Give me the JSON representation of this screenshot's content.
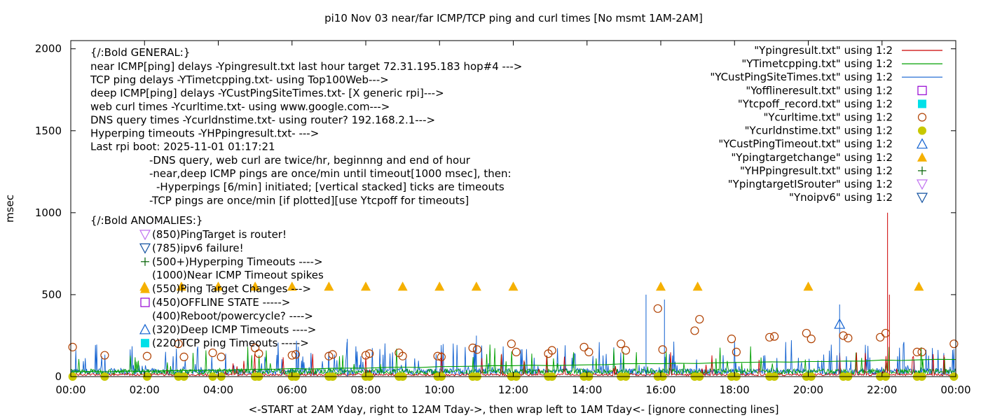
{
  "chart_data": {
    "type": "line",
    "title": "pi10 Nov 03  near/far ICMP/TCP ping and curl times [No msmt 1AM-2AM]",
    "xlabel": "<-START at 2AM Yday, right to 12AM Tday->, then wrap left to 1AM Tday<- [ignore connecting lines]",
    "ylabel": "msec",
    "xlim": [
      0,
      24
    ],
    "ylim": [
      0,
      2050
    ],
    "x_ticks": [
      {
        "v": 0,
        "label": "00:00"
      },
      {
        "v": 2,
        "label": "02:00"
      },
      {
        "v": 4,
        "label": "04:00"
      },
      {
        "v": 6,
        "label": "06:00"
      },
      {
        "v": 8,
        "label": "08:00"
      },
      {
        "v": 10,
        "label": "10:00"
      },
      {
        "v": 12,
        "label": "12:00"
      },
      {
        "v": 14,
        "label": "14:00"
      },
      {
        "v": 16,
        "label": "16:00"
      },
      {
        "v": 18,
        "label": "18:00"
      },
      {
        "v": 20,
        "label": "20:00"
      },
      {
        "v": 22,
        "label": "22:00"
      },
      {
        "v": 24,
        "label": "00:00"
      }
    ],
    "y_ticks": [
      {
        "v": 0,
        "label": "0"
      },
      {
        "v": 500,
        "label": "500"
      },
      {
        "v": 1000,
        "label": "1000"
      },
      {
        "v": 1500,
        "label": "1500"
      },
      {
        "v": 2000,
        "label": "2000"
      }
    ],
    "grid": false,
    "legend_position": "top-right",
    "legend": [
      {
        "name": "\"Ypingresult.txt\" using 1:2",
        "style": "line",
        "color": "#cc0000"
      },
      {
        "name": "\"YTimetcpping.txt\" using 1:2",
        "style": "line",
        "color": "#00a000"
      },
      {
        "name": "\"YCustPingSiteTimes.txt\" using 1:2",
        "style": "line",
        "color": "#1060d0"
      },
      {
        "name": "\"Yofflineresult.txt\" using 1:2",
        "style": "open-square",
        "color": "#9400d3"
      },
      {
        "name": "\"Ytcpoff_record.txt\" using 1:2",
        "style": "filled-square",
        "color": "#00e0e8"
      },
      {
        "name": "\"Ycurltime.txt\" using 1:2",
        "style": "open-circle",
        "color": "#b04000"
      },
      {
        "name": "\"Ycurldnstime.txt\" using 1:2",
        "style": "filled-circle",
        "color": "#c8c800"
      },
      {
        "name": "\"YCustPingTimeout.txt\" using 1:2",
        "style": "open-triangle",
        "color": "#1060d0"
      },
      {
        "name": "\"Ypingtargetchange\" using 1:2",
        "style": "filled-triangle",
        "color": "#f5b000"
      },
      {
        "name": "\"YHPpingresult.txt\" using 1:2",
        "style": "plus",
        "color": "#006000"
      },
      {
        "name": "\"YpingtargetISrouter\" using 1:2",
        "style": "open-triangle-down",
        "color": "#c070f0"
      },
      {
        "name": "\"Ynoipv6\" using 1:2",
        "style": "open-triangle-down",
        "color": "#1050a0"
      }
    ],
    "series": [
      {
        "name": "\"Ycurltime.txt\" using 1:2",
        "x": [
          0.05,
          0.92,
          2.07,
          2.92,
          3.07,
          3.85,
          4.08,
          5.0,
          5.1,
          6.0,
          6.1,
          7.0,
          7.1,
          8.0,
          8.1,
          8.9,
          9.0,
          9.95,
          10.05,
          10.9,
          11.02,
          11.95,
          12.08,
          12.95,
          13.05,
          13.92,
          14.05,
          14.92,
          15.05,
          15.92,
          16.05,
          16.92,
          17.05,
          17.92,
          18.05,
          18.95,
          19.08,
          19.95,
          20.08,
          20.95,
          21.08,
          21.95,
          22.1,
          22.95,
          23.08,
          23.95
        ],
        "y": [
          180,
          130,
          125,
          200,
          120,
          145,
          120,
          175,
          140,
          130,
          135,
          125,
          135,
          130,
          140,
          145,
          125,
          125,
          120,
          175,
          165,
          200,
          150,
          140,
          160,
          180,
          150,
          200,
          160,
          415,
          165,
          280,
          350,
          230,
          150,
          240,
          245,
          265,
          230,
          250,
          235,
          240,
          265,
          150,
          150,
          200
        ]
      },
      {
        "name": "\"Ycurldnstime.txt\" using 1:2",
        "x": [
          0.05,
          0.92,
          2.07,
          2.92,
          3.07,
          3.85,
          4.08,
          5.0,
          5.1,
          6.0,
          6.1,
          7.0,
          7.1,
          8.0,
          8.1,
          8.9,
          9.0,
          9.95,
          10.05,
          10.9,
          11.02,
          11.95,
          12.08,
          12.95,
          13.05,
          13.92,
          14.05,
          14.92,
          15.05,
          15.92,
          16.05,
          16.92,
          17.05,
          17.92,
          18.05,
          18.95,
          19.08,
          19.95,
          20.08,
          20.95,
          21.08,
          21.95,
          22.1,
          22.95,
          23.08,
          23.95
        ],
        "y": [
          0,
          0,
          0,
          0,
          0,
          0,
          0,
          0,
          0,
          0,
          0,
          0,
          0,
          0,
          0,
          0,
          0,
          0,
          0,
          0,
          0,
          0,
          0,
          0,
          0,
          0,
          0,
          0,
          0,
          0,
          0,
          0,
          0,
          0,
          0,
          0,
          0,
          0,
          0,
          0,
          0,
          0,
          0,
          0,
          0,
          0
        ]
      },
      {
        "name": "\"Ypingtargetchange\" using 1:2",
        "x": [
          2.0,
          3.0,
          4.0,
          5.0,
          6.0,
          7.0,
          8.0,
          9.0,
          10.0,
          11.0,
          12.0,
          16.0,
          17.0,
          20.0,
          23.0
        ],
        "y": [
          550,
          550,
          550,
          550,
          550,
          550,
          550,
          550,
          550,
          550,
          550,
          550,
          550,
          550,
          550
        ]
      },
      {
        "name": "\"YCustPingTimeout.txt\" using 1:2",
        "x": [
          20.85
        ],
        "y": [
          320
        ]
      }
    ],
    "annotations": {
      "general_title": "{/:Bold GENERAL:}",
      "general_lines": [
        "near ICMP[ping] delays -Ypingresult.txt last hour target 72.31.195.183 hop#4 --->",
        "TCP ping delays -YTimetcpping.txt- using Top100Web--->",
        "deep ICMP[ping] delays -YCustPingSiteTimes.txt- [X generic rpi]--->",
        "web curl times -Ycurltime.txt- using www.google.com--->",
        "DNS query times -Ycurldnstime.txt- using router? 192.168.2.1--->",
        "Hyperping timeouts -YHPpingresult.txt- --->",
        "Last rpi boot: 2025-11-01 01:17:21"
      ],
      "notes": [
        "-DNS query, web curl are twice/hr, beginnng and end of hour",
        "-near,deep ICMP pings are once/min until timeout[1000 msec], then:",
        "-Hyperpings [6/min] initiated; [vertical stacked] ticks are timeouts",
        "-TCP pings are once/min [if plotted][use Ytcpoff for timeouts]"
      ],
      "anomalies_title": "{/:Bold ANOMALIES:}",
      "anomalies": [
        {
          "text": "(850)PingTarget is router!",
          "marker": "open-triangle-down",
          "color": "#c070f0"
        },
        {
          "text": "(785)ipv6 failure!",
          "marker": "open-triangle-down",
          "color": "#1050a0"
        },
        {
          "text": "(500+)Hyperping Timeouts ---->",
          "marker": "plus",
          "color": "#006000"
        },
        {
          "text": "(1000)Near ICMP Timeout spikes",
          "marker": "none",
          "color": "#000000"
        },
        {
          "text": "(550)Ping Target Changes --->",
          "marker": "filled-triangle",
          "color": "#f5b000"
        },
        {
          "text": "(450)OFFLINE STATE ----->",
          "marker": "open-square",
          "color": "#9400d3"
        },
        {
          "text": "(400)Reboot/powercycle? ---->",
          "marker": "none",
          "color": "#000000"
        },
        {
          "text": "(320)Deep ICMP Timeouts ---->",
          "marker": "open-triangle",
          "color": "#1060d0"
        },
        {
          "text": "(220)TCP ping Timeouts ----->",
          "marker": "filled-square",
          "color": "#00e0e8"
        }
      ]
    }
  }
}
